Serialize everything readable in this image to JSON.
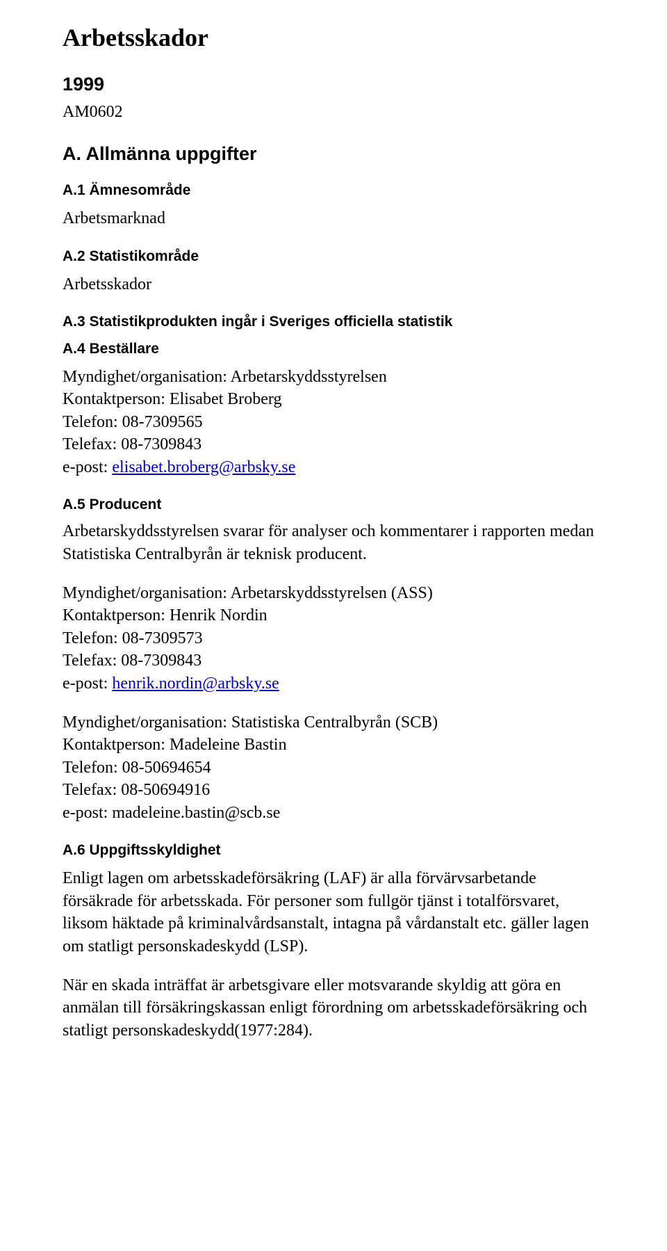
{
  "title": "Arbetsskador",
  "year": "1999",
  "code": "AM0602",
  "section_a": {
    "heading": "A. Allmänna uppgifter",
    "a1": {
      "heading": "A.1 Ämnesområde",
      "text": "Arbetsmarknad"
    },
    "a2": {
      "heading": "A.2 Statistikområde",
      "text": "Arbetsskador"
    },
    "a3": {
      "heading": "A.3 Statistikprodukten ingår i Sveriges officiella statistik"
    },
    "a4": {
      "heading": "A.4 Beställare",
      "org": "Myndighet/organisation: Arbetarskyddsstyrelsen",
      "contact": "Kontaktperson: Elisabet Broberg",
      "phone": "Telefon: 08-7309565",
      "fax": "Telefax: 08-7309843",
      "email_label": "e-post: ",
      "email": "elisabet.broberg@arbsky.se"
    },
    "a5": {
      "heading": "A.5 Producent",
      "intro": "Arbetarskyddsstyrelsen svarar för analyser och kommentarer i rapporten medan Statistiska Centralbyrån är teknisk producent.",
      "block1": {
        "org": "Myndighet/organisation: Arbetarskyddsstyrelsen (ASS)",
        "contact": "Kontaktperson: Henrik Nordin",
        "phone": "Telefon: 08-7309573",
        "fax": "Telefax: 08-7309843",
        "email_label": "e-post: ",
        "email": "henrik.nordin@arbsky.se"
      },
      "block2": {
        "org": "Myndighet/organisation: Statistiska Centralbyrån (SCB)",
        "contact": "Kontaktperson: Madeleine Bastin",
        "phone": "Telefon: 08-50694654",
        "fax": "Telefax: 08-50694916",
        "email_label": "e-post: madeleine.bastin@scb.se"
      }
    },
    "a6": {
      "heading": "A.6 Uppgiftsskyldighet",
      "p1": "Enligt lagen om arbetsskadeförsäkring (LAF) är alla förvärvsarbetande försäkrade för arbetsskada. För personer som fullgör tjänst i totalförsvaret, liksom  häktade på kriminalvårdsanstalt, intagna på vårdanstalt etc. gäller lagen om statligt personskadeskydd (LSP).",
      "p2": "När en skada inträffat är arbetsgivare eller motsvarande skyldig att göra en anmälan till försäkringskassan enligt förordning om arbetsskadeförsäkring och statligt personskadeskydd(1977:284)."
    }
  }
}
